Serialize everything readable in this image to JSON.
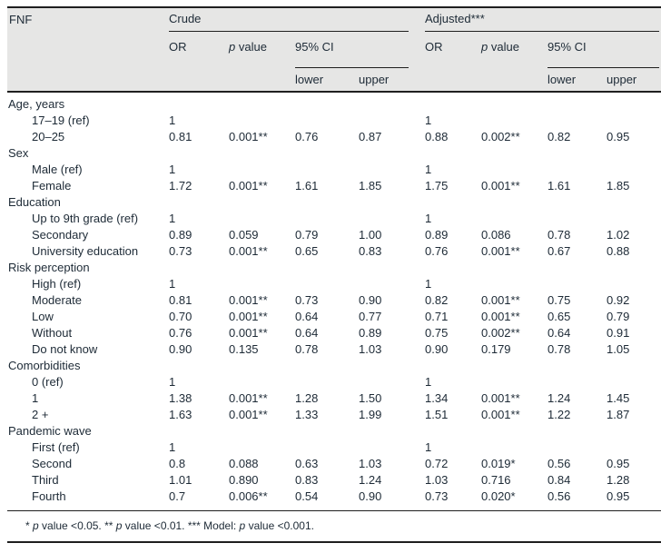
{
  "table": {
    "head": {
      "fnf": "FNF",
      "crude": "Crude",
      "adjusted": "Adjusted***",
      "or": "OR",
      "p": "p value",
      "ci": "95% CI",
      "lower": "lower",
      "upper": "upper"
    },
    "sections": [
      {
        "label": "Age, years",
        "rows": [
          {
            "label": "17–19 (ref)",
            "crude": [
              "1",
              "",
              "",
              ""
            ],
            "adjusted": [
              "1",
              "",
              "",
              ""
            ]
          },
          {
            "label": "20–25",
            "crude": [
              "0.81",
              "0.001**",
              "0.76",
              "0.87"
            ],
            "adjusted": [
              "0.88",
              "0.002**",
              "0.82",
              "0.95"
            ]
          }
        ]
      },
      {
        "label": "Sex",
        "rows": [
          {
            "label": "Male (ref)",
            "crude": [
              "1",
              "",
              "",
              ""
            ],
            "adjusted": [
              "1",
              "",
              "",
              ""
            ]
          },
          {
            "label": "Female",
            "crude": [
              "1.72",
              "0.001**",
              "1.61",
              "1.85"
            ],
            "adjusted": [
              "1.75",
              "0.001**",
              "1.61",
              "1.85"
            ]
          }
        ]
      },
      {
        "label": "Education",
        "rows": [
          {
            "label": "Up to 9th grade (ref)",
            "crude": [
              "1",
              "",
              "",
              ""
            ],
            "adjusted": [
              "1",
              "",
              "",
              ""
            ]
          },
          {
            "label": "Secondary",
            "crude": [
              "0.89",
              "0.059",
              "0.79",
              "1.00"
            ],
            "adjusted": [
              "0.89",
              "0.086",
              "0.78",
              "1.02"
            ]
          },
          {
            "label": "University education",
            "crude": [
              "0.73",
              "0.001**",
              "0.65",
              "0.83"
            ],
            "adjusted": [
              "0.76",
              "0.001**",
              "0.67",
              "0.88"
            ]
          }
        ]
      },
      {
        "label": "Risk perception",
        "rows": [
          {
            "label": "High (ref)",
            "crude": [
              "1",
              "",
              "",
              ""
            ],
            "adjusted": [
              "1",
              "",
              "",
              ""
            ]
          },
          {
            "label": "Moderate",
            "crude": [
              "0.81",
              "0.001**",
              "0.73",
              "0.90"
            ],
            "adjusted": [
              "0.82",
              "0.001**",
              "0.75",
              "0.92"
            ]
          },
          {
            "label": "Low",
            "crude": [
              "0.70",
              "0.001**",
              "0.64",
              "0.77"
            ],
            "adjusted": [
              "0.71",
              "0.001**",
              "0.65",
              "0.79"
            ]
          },
          {
            "label": "Without",
            "crude": [
              "0.76",
              "0.001**",
              "0.64",
              "0.89"
            ],
            "adjusted": [
              "0.75",
              "0.002**",
              "0.64",
              "0.91"
            ]
          },
          {
            "label": "Do not know",
            "crude": [
              "0.90",
              "0.135",
              "0.78",
              "1.03"
            ],
            "adjusted": [
              "0.90",
              "0.179",
              "0.78",
              "1.05"
            ]
          }
        ]
      },
      {
        "label": "Comorbidities",
        "rows": [
          {
            "label": "0 (ref)",
            "crude": [
              "1",
              "",
              "",
              ""
            ],
            "adjusted": [
              "1",
              "",
              "",
              ""
            ]
          },
          {
            "label": "1",
            "crude": [
              "1.38",
              "0.001**",
              "1.28",
              "1.50"
            ],
            "adjusted": [
              "1.34",
              "0.001**",
              "1.24",
              "1.45"
            ]
          },
          {
            "label": "2 +",
            "crude": [
              "1.63",
              "0.001**",
              "1.33",
              "1.99"
            ],
            "adjusted": [
              "1.51",
              "0.001**",
              "1.22",
              "1.87"
            ]
          }
        ]
      },
      {
        "label": "Pandemic wave",
        "rows": [
          {
            "label": "First (ref)",
            "crude": [
              "1",
              "",
              "",
              ""
            ],
            "adjusted": [
              "1",
              "",
              "",
              ""
            ]
          },
          {
            "label": "Second",
            "crude": [
              "0.8",
              "0.088",
              "0.63",
              "1.03"
            ],
            "adjusted": [
              "0.72",
              "0.019*",
              "0.56",
              "0.95"
            ]
          },
          {
            "label": "Third",
            "crude": [
              "1.01",
              "0.890",
              "0.83",
              "1.24"
            ],
            "adjusted": [
              "1.03",
              "0.716",
              "0.84",
              "1.28"
            ]
          },
          {
            "label": "Fourth",
            "crude": [
              "0.7",
              "0.006**",
              "0.54",
              "0.90"
            ],
            "adjusted": [
              "0.73",
              "0.020*",
              "0.56",
              "0.95"
            ]
          }
        ]
      }
    ],
    "footnote": "* p value <0.05. ** p value <0.01. *** Model: p value <0.001.",
    "colors": {
      "header_bg": "#e6e6e5",
      "text": "#1d2a36",
      "rule": "#1f1f1f"
    }
  }
}
